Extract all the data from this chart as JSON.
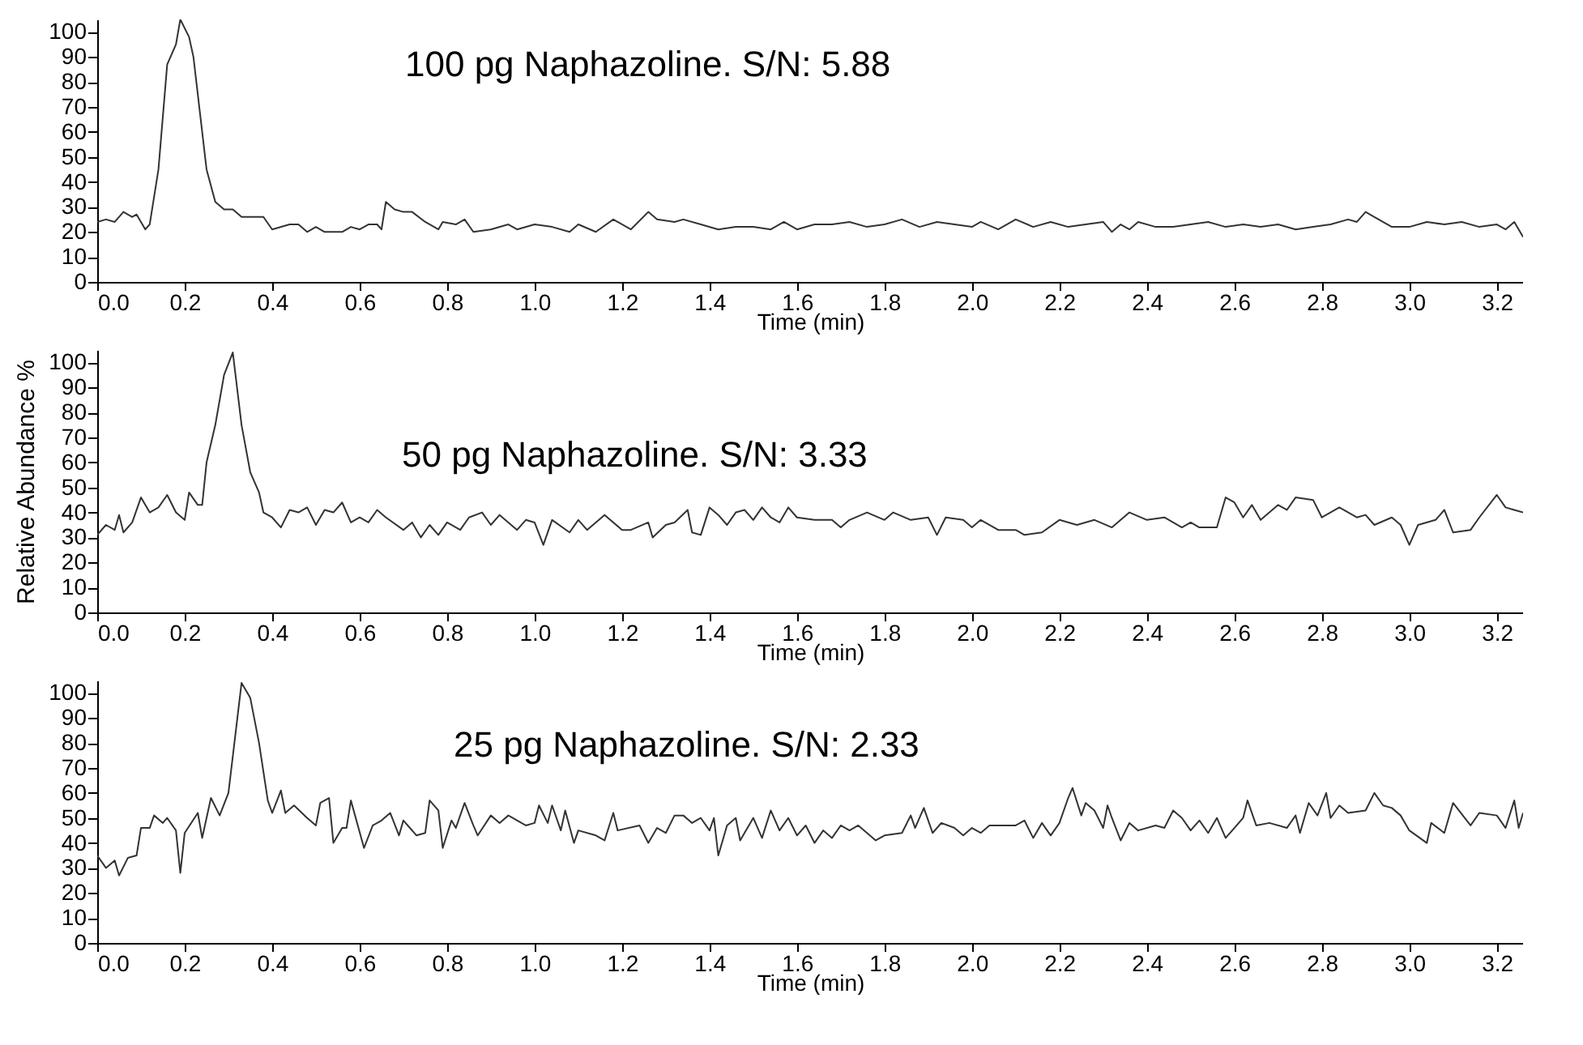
{
  "chart_data": [
    {
      "type": "line",
      "title": "100 pg Naphazoline. S/N: 5.88",
      "xlabel": "Time (min)",
      "xlim": [
        0,
        3.26
      ],
      "ylim": [
        0,
        105
      ],
      "xticks": [
        {
          "value": 0,
          "label": "0.0"
        },
        0.2,
        0.4,
        0.6,
        0.8,
        {
          "value": 1,
          "label": "1.0"
        },
        1.2,
        1.4,
        1.6,
        1.8,
        {
          "value": 2,
          "label": "2.0"
        },
        2.2,
        2.4,
        2.6,
        2.8,
        {
          "value": 3,
          "label": "3.0"
        },
        3.2
      ],
      "yticks": [
        0,
        10,
        20,
        30,
        40,
        50,
        60,
        70,
        80,
        90,
        100
      ],
      "grid": false,
      "series": [
        {
          "color": "#333333",
          "x": [
            0,
            0.02,
            0.04,
            0.06,
            0.08,
            0.09,
            0.11,
            0.12,
            0.14,
            0.16,
            0.18,
            0.19,
            0.21,
            0.22,
            0.25,
            0.27,
            0.29,
            0.31,
            0.33,
            0.38,
            0.4,
            0.44,
            0.46,
            0.48,
            0.5,
            0.52,
            0.56,
            0.58,
            0.6,
            0.62,
            0.64,
            0.65,
            0.66,
            0.68,
            0.7,
            0.72,
            0.75,
            0.78,
            0.79,
            0.82,
            0.84,
            0.86,
            0.9,
            0.94,
            0.96,
            1.0,
            1.04,
            1.08,
            1.1,
            1.14,
            1.18,
            1.22,
            1.26,
            1.28,
            1.32,
            1.34,
            1.38,
            1.42,
            1.46,
            1.5,
            1.54,
            1.57,
            1.6,
            1.64,
            1.68,
            1.72,
            1.76,
            1.8,
            1.84,
            1.88,
            1.92,
            1.96,
            2.0,
            2.02,
            2.06,
            2.1,
            2.14,
            2.18,
            2.22,
            2.26,
            2.3,
            2.32,
            2.34,
            2.36,
            2.38,
            2.42,
            2.46,
            2.5,
            2.54,
            2.58,
            2.62,
            2.66,
            2.7,
            2.74,
            2.78,
            2.82,
            2.86,
            2.88,
            2.9,
            2.92,
            2.96,
            3.0,
            3.04,
            3.08,
            3.12,
            3.16,
            3.2,
            3.22,
            3.24,
            3.26
          ],
          "values": [
            24,
            25,
            24,
            28,
            26,
            27,
            21,
            23,
            45,
            87,
            95,
            105,
            98,
            90,
            45,
            32,
            29,
            29,
            26,
            26,
            21,
            23,
            23,
            20,
            22,
            20,
            20,
            22,
            21,
            23,
            23,
            21,
            32,
            29,
            28,
            28,
            24,
            21,
            24,
            23,
            25,
            20,
            21,
            23,
            21,
            23,
            22,
            20,
            23,
            20,
            25,
            21,
            28,
            25,
            24,
            25,
            23,
            21,
            22,
            22,
            21,
            24,
            21,
            23,
            23,
            24,
            22,
            23,
            25,
            22,
            24,
            23,
            22,
            24,
            21,
            25,
            22,
            24,
            22,
            23,
            24,
            20,
            23,
            21,
            24,
            22,
            22,
            23,
            24,
            22,
            23,
            22,
            23,
            21,
            22,
            23,
            25,
            24,
            28,
            26,
            22,
            22,
            24,
            23,
            24,
            22,
            23,
            21,
            24,
            18
          ]
        }
      ]
    },
    {
      "type": "line",
      "title": "50 pg Naphazoline. S/N: 3.33",
      "xlabel": "Time (min)",
      "ylabel": "Relative Abundance %",
      "xlim": [
        0,
        3.26
      ],
      "ylim": [
        0,
        105
      ],
      "xticks": [
        {
          "value": 0,
          "label": "0.0"
        },
        0.2,
        0.4,
        0.6,
        0.8,
        {
          "value": 1,
          "label": "1.0"
        },
        1.2,
        1.4,
        1.6,
        1.8,
        {
          "value": 2,
          "label": "2.0"
        },
        2.2,
        2.4,
        2.6,
        2.8,
        {
          "value": 3,
          "label": "3.0"
        },
        3.2
      ],
      "yticks": [
        0,
        10,
        20,
        30,
        40,
        50,
        60,
        70,
        80,
        90,
        100
      ],
      "grid": false,
      "series": [
        {
          "color": "#333333",
          "x": [
            0,
            0.02,
            0.04,
            0.05,
            0.06,
            0.08,
            0.1,
            0.12,
            0.14,
            0.16,
            0.18,
            0.2,
            0.21,
            0.23,
            0.24,
            0.25,
            0.27,
            0.29,
            0.31,
            0.33,
            0.35,
            0.37,
            0.38,
            0.4,
            0.42,
            0.44,
            0.46,
            0.48,
            0.5,
            0.52,
            0.54,
            0.56,
            0.58,
            0.6,
            0.62,
            0.64,
            0.66,
            0.7,
            0.72,
            0.74,
            0.76,
            0.78,
            0.8,
            0.83,
            0.85,
            0.88,
            0.9,
            0.92,
            0.96,
            0.98,
            1.0,
            1.02,
            1.04,
            1.08,
            1.1,
            1.12,
            1.16,
            1.2,
            1.22,
            1.26,
            1.27,
            1.3,
            1.32,
            1.35,
            1.36,
            1.38,
            1.4,
            1.42,
            1.44,
            1.46,
            1.48,
            1.5,
            1.52,
            1.54,
            1.56,
            1.58,
            1.6,
            1.64,
            1.68,
            1.7,
            1.72,
            1.76,
            1.8,
            1.82,
            1.86,
            1.9,
            1.92,
            1.94,
            1.98,
            2.0,
            2.02,
            2.06,
            2.1,
            2.12,
            2.16,
            2.2,
            2.24,
            2.28,
            2.32,
            2.36,
            2.4,
            2.44,
            2.48,
            2.5,
            2.52,
            2.56,
            2.58,
            2.6,
            2.62,
            2.64,
            2.66,
            2.7,
            2.72,
            2.74,
            2.78,
            2.8,
            2.84,
            2.88,
            2.9,
            2.92,
            2.96,
            2.98,
            3.0,
            3.02,
            3.06,
            3.08,
            3.1,
            3.14,
            3.16,
            3.2,
            3.22,
            3.24,
            3.26
          ],
          "values": [
            31,
            35,
            33,
            39,
            32,
            36,
            46,
            40,
            42,
            47,
            40,
            37,
            48,
            43,
            43,
            60,
            75,
            95,
            104,
            75,
            56,
            48,
            40,
            38,
            34,
            41,
            40,
            42,
            35,
            41,
            40,
            44,
            36,
            38,
            36,
            41,
            38,
            33,
            36,
            30,
            35,
            31,
            36,
            33,
            38,
            40,
            35,
            39,
            33,
            37,
            36,
            27,
            37,
            32,
            37,
            33,
            39,
            33,
            33,
            36,
            30,
            35,
            36,
            41,
            32,
            31,
            42,
            39,
            35,
            40,
            41,
            37,
            42,
            38,
            36,
            42,
            38,
            37,
            37,
            34,
            37,
            40,
            37,
            40,
            37,
            38,
            31,
            38,
            37,
            34,
            37,
            33,
            33,
            31,
            32,
            37,
            35,
            37,
            34,
            40,
            37,
            38,
            34,
            36,
            34,
            34,
            46,
            44,
            38,
            43,
            37,
            43,
            41,
            46,
            45,
            38,
            42,
            38,
            39,
            35,
            38,
            35,
            27,
            35,
            37,
            41,
            32,
            33,
            38,
            47,
            42,
            41,
            40
          ]
        }
      ]
    },
    {
      "type": "line",
      "title": "25 pg Naphazoline. S/N: 2.33",
      "xlabel": "Time (min)",
      "xlim": [
        0,
        3.26
      ],
      "ylim": [
        0,
        105
      ],
      "xticks": [
        {
          "value": 0,
          "label": "0.0"
        },
        0.2,
        0.4,
        0.6,
        0.8,
        {
          "value": 1,
          "label": "1.0"
        },
        1.2,
        1.4,
        1.6,
        1.8,
        {
          "value": 2,
          "label": "2.0"
        },
        2.2,
        2.4,
        2.6,
        2.8,
        {
          "value": 3,
          "label": "3.0"
        },
        3.2
      ],
      "yticks": [
        0,
        10,
        20,
        30,
        40,
        50,
        60,
        70,
        80,
        90,
        100
      ],
      "grid": false,
      "series": [
        {
          "color": "#333333",
          "x": [
            0,
            0.02,
            0.04,
            0.05,
            0.07,
            0.09,
            0.1,
            0.12,
            0.13,
            0.15,
            0.16,
            0.18,
            0.19,
            0.2,
            0.23,
            0.24,
            0.26,
            0.28,
            0.3,
            0.33,
            0.35,
            0.37,
            0.39,
            0.4,
            0.42,
            0.43,
            0.45,
            0.48,
            0.5,
            0.51,
            0.53,
            0.54,
            0.56,
            0.57,
            0.58,
            0.61,
            0.63,
            0.65,
            0.67,
            0.69,
            0.7,
            0.73,
            0.75,
            0.76,
            0.78,
            0.79,
            0.81,
            0.82,
            0.84,
            0.86,
            0.87,
            0.9,
            0.92,
            0.94,
            0.98,
            1.0,
            1.01,
            1.03,
            1.04,
            1.06,
            1.07,
            1.09,
            1.1,
            1.14,
            1.16,
            1.18,
            1.19,
            1.24,
            1.26,
            1.28,
            1.3,
            1.32,
            1.34,
            1.36,
            1.38,
            1.4,
            1.41,
            1.42,
            1.44,
            1.46,
            1.47,
            1.5,
            1.52,
            1.54,
            1.56,
            1.58,
            1.6,
            1.62,
            1.64,
            1.66,
            1.68,
            1.7,
            1.72,
            1.74,
            1.78,
            1.8,
            1.84,
            1.86,
            1.87,
            1.89,
            1.91,
            1.93,
            1.96,
            1.98,
            2.0,
            2.02,
            2.04,
            2.06,
            2.1,
            2.12,
            2.14,
            2.16,
            2.18,
            2.2,
            2.22,
            2.23,
            2.25,
            2.26,
            2.28,
            2.3,
            2.31,
            2.32,
            2.34,
            2.36,
            2.38,
            2.42,
            2.44,
            2.46,
            2.48,
            2.5,
            2.52,
            2.54,
            2.56,
            2.58,
            2.62,
            2.63,
            2.65,
            2.68,
            2.72,
            2.74,
            2.75,
            2.77,
            2.79,
            2.81,
            2.82,
            2.84,
            2.86,
            2.9,
            2.92,
            2.94,
            2.96,
            2.98,
            3.0,
            3.04,
            3.05,
            3.08,
            3.1,
            3.14,
            3.16,
            3.2,
            3.22,
            3.24,
            3.25,
            3.26
          ],
          "values": [
            35,
            30,
            33,
            27,
            34,
            35,
            46,
            46,
            51,
            48,
            50,
            45,
            28,
            44,
            52,
            42,
            58,
            51,
            60,
            104,
            98,
            80,
            57,
            52,
            61,
            52,
            55,
            50,
            47,
            56,
            58,
            40,
            46,
            46,
            57,
            38,
            47,
            49,
            52,
            43,
            49,
            43,
            44,
            57,
            53,
            38,
            49,
            46,
            56,
            47,
            43,
            51,
            48,
            51,
            47,
            48,
            55,
            48,
            55,
            45,
            53,
            40,
            45,
            43,
            41,
            52,
            45,
            47,
            40,
            46,
            44,
            51,
            51,
            48,
            50,
            45,
            50,
            35,
            47,
            50,
            41,
            50,
            42,
            53,
            45,
            50,
            43,
            47,
            40,
            45,
            42,
            47,
            45,
            47,
            41,
            43,
            44,
            51,
            46,
            54,
            44,
            48,
            46,
            43,
            46,
            44,
            47,
            47,
            47,
            49,
            42,
            48,
            43,
            48,
            58,
            62,
            51,
            56,
            53,
            46,
            55,
            50,
            41,
            48,
            45,
            47,
            46,
            53,
            50,
            45,
            49,
            44,
            50,
            42,
            50,
            57,
            47,
            48,
            46,
            51,
            44,
            56,
            51,
            60,
            50,
            55,
            52,
            53,
            60,
            55,
            54,
            51,
            45,
            40,
            48,
            44,
            56,
            47,
            52,
            51,
            46,
            57,
            46,
            52
          ]
        }
      ]
    }
  ]
}
